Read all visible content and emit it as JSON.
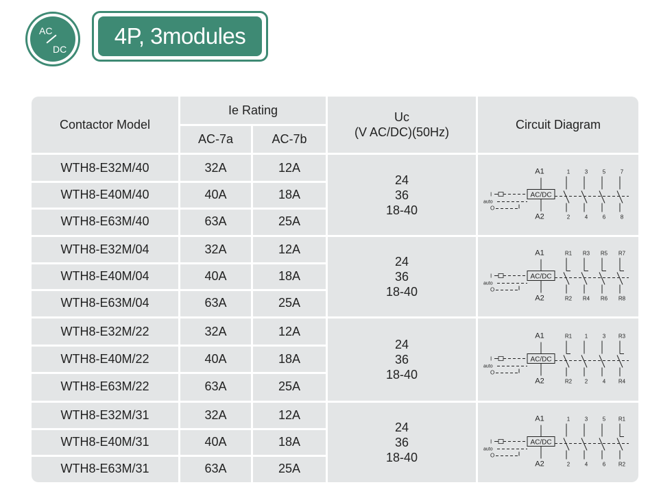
{
  "badge": {
    "top": "AC",
    "bottom": "DC"
  },
  "title": "4P, 3modules",
  "headers": {
    "model": "Contactor Model",
    "rating": "Ie Rating",
    "ac7a": "AC-7a",
    "ac7b": "AC-7b",
    "uc_line1": "Uc",
    "uc_line2": "(V AC/DC)(50Hz)",
    "diagram": "Circuit Diagram"
  },
  "groups": [
    {
      "rows": [
        {
          "model": "WTH8-E32M/40",
          "ac7a": "32A",
          "ac7b": "12A"
        },
        {
          "model": "WTH8-E40M/40",
          "ac7a": "40A",
          "ac7b": "18A"
        },
        {
          "model": "WTH8-E63M/40",
          "ac7a": "63A",
          "ac7b": "25A"
        }
      ],
      "uc": [
        "24",
        "36",
        "18-40"
      ],
      "diagram": {
        "top": [
          "A1",
          "1",
          "3",
          "5",
          "7"
        ],
        "bottom": [
          "A2",
          "2",
          "4",
          "6",
          "8"
        ],
        "coil": "AC/DC",
        "auto": "auto"
      }
    },
    {
      "rows": [
        {
          "model": "WTH8-E32M/04",
          "ac7a": "32A",
          "ac7b": "12A"
        },
        {
          "model": "WTH8-E40M/04",
          "ac7a": "40A",
          "ac7b": "18A"
        },
        {
          "model": "WTH8-E63M/04",
          "ac7a": "63A",
          "ac7b": "25A"
        }
      ],
      "uc": [
        "24",
        "36",
        "18-40"
      ],
      "diagram": {
        "top": [
          "A1",
          "R1",
          "R3",
          "R5",
          "R7"
        ],
        "bottom": [
          "A2",
          "R2",
          "R4",
          "R6",
          "R8"
        ],
        "coil": "AC/DC",
        "auto": "auto"
      }
    },
    {
      "rows": [
        {
          "model": "WTH8-E32M/22",
          "ac7a": "32A",
          "ac7b": "12A"
        },
        {
          "model": "WTH8-E40M/22",
          "ac7a": "40A",
          "ac7b": "18A"
        },
        {
          "model": "WTH8-E63M/22",
          "ac7a": "63A",
          "ac7b": "25A"
        }
      ],
      "uc": [
        "24",
        "36",
        "18-40"
      ],
      "diagram": {
        "top": [
          "A1",
          "R1",
          "1",
          "3",
          "R3"
        ],
        "bottom": [
          "A2",
          "R2",
          "2",
          "4",
          "R4"
        ],
        "coil": "AC/DC",
        "auto": "auto"
      }
    },
    {
      "rows": [
        {
          "model": "WTH8-E32M/31",
          "ac7a": "32A",
          "ac7b": "12A"
        },
        {
          "model": "WTH8-E40M/31",
          "ac7a": "40A",
          "ac7b": "18A"
        },
        {
          "model": "WTH8-E63M/31",
          "ac7a": "63A",
          "ac7b": "25A"
        }
      ],
      "uc": [
        "24",
        "36",
        "18-40"
      ],
      "diagram": {
        "top": [
          "A1",
          "1",
          "3",
          "5",
          "R1"
        ],
        "bottom": [
          "A2",
          "2",
          "4",
          "6",
          "R2"
        ],
        "coil": "AC/DC",
        "auto": "auto"
      }
    }
  ],
  "colors": {
    "accent": "#3e8a74",
    "table_bg": "#e3e5e6",
    "divider": "#ffffff"
  }
}
